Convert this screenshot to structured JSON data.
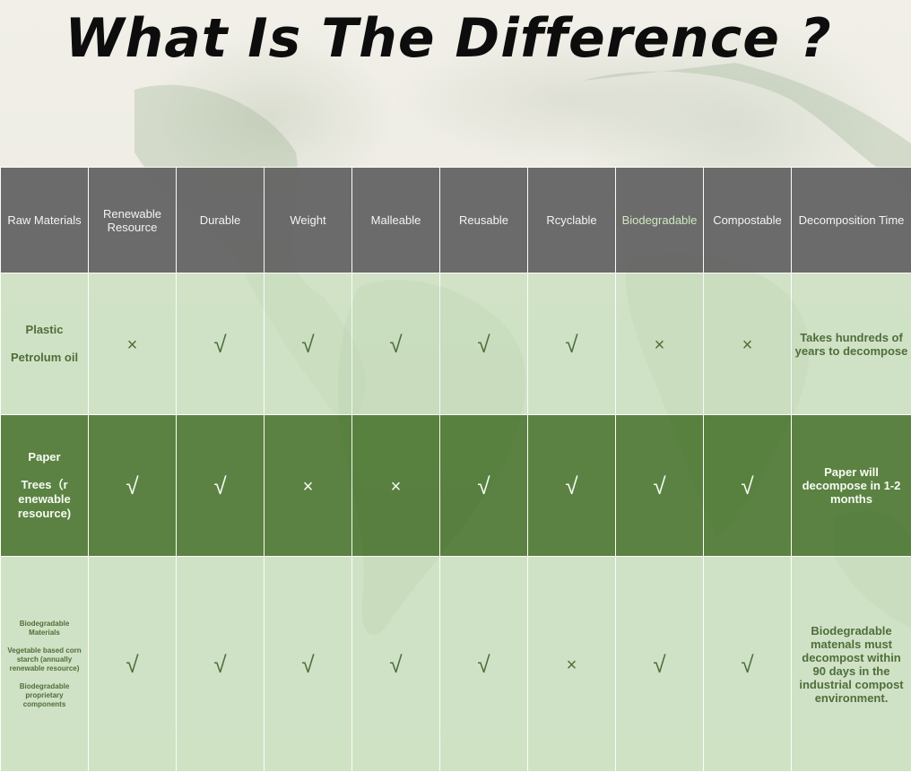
{
  "title": "What Is The Difference ?",
  "headers": [
    "Raw Materials",
    "Renewable Resource",
    "Durable",
    "Weight",
    "Malleable",
    "Reusable",
    "Rcyclable",
    "Biodegradable",
    "Compostable",
    "Decomposition Time"
  ],
  "symbols": {
    "check": "√",
    "cross": "×"
  },
  "rows": [
    {
      "raw_lines": [
        "Plastic",
        "Petrolum oil"
      ],
      "marks": [
        "cross",
        "check",
        "check",
        "check",
        "check",
        "check",
        "cross",
        "cross"
      ],
      "decomposition": "Takes hundreds of years to decompose"
    },
    {
      "raw_lines": [
        "Paper",
        "Trees（r enewable resource)"
      ],
      "marks": [
        "check",
        "check",
        "cross",
        "cross",
        "check",
        "check",
        "check",
        "check"
      ],
      "decomposition": "Paper will decompose in 1-2 months"
    },
    {
      "raw_lines": [
        "Biodegradable Materials",
        "Vegetable based corn starch (annually renewable resource)",
        "Biodegradable proprietary components"
      ],
      "marks": [
        "check",
        "check",
        "check",
        "check",
        "check",
        "cross",
        "check",
        "check"
      ],
      "decomposition": "Biodegradable matenals must decompost within 90 days in the industrial compost environment."
    }
  ],
  "colors": {
    "header_bg": "#646464",
    "row_light": "#c9e0be",
    "row_dark": "#4e7834",
    "mark_green": "#4e6e3a",
    "title": "#0d0d0d"
  }
}
